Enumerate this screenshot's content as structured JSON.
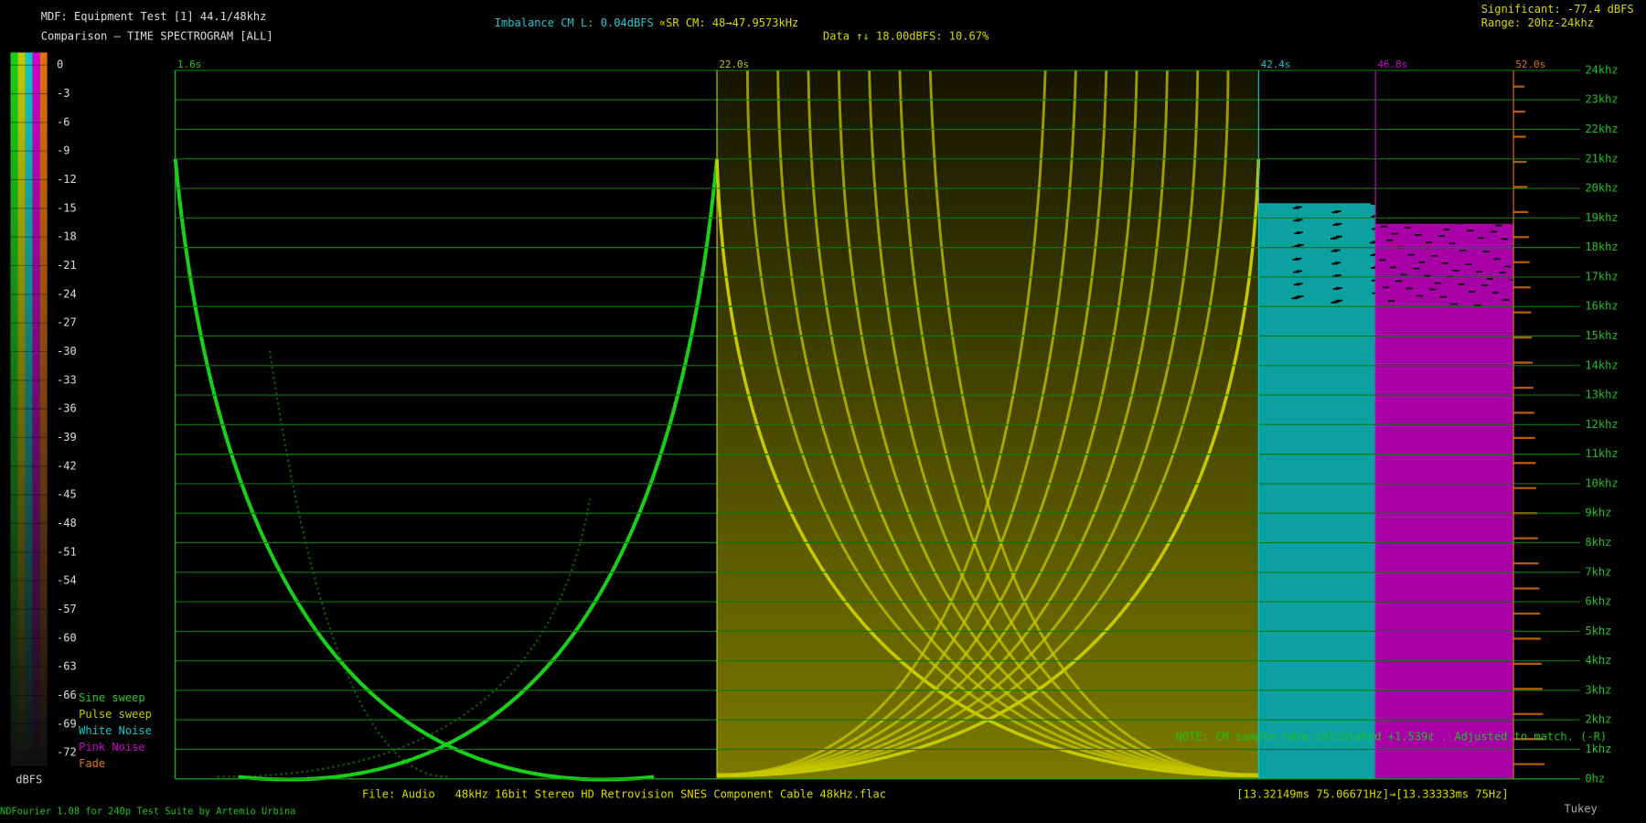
{
  "header": {
    "title": "MDF: Equipment Test [1] 44.1/48khz",
    "subtitle": "Comparison — TIME SPECTROGRAM [ALL]",
    "imbalance": "Imbalance CM L: 0.04dBFS",
    "sample_rate": "∝SR CM: 48→47.9573kHz",
    "data": "Data ↑↓ 18.00dBFS: 10.67%",
    "significant": "Significant: -77.4 dBFS",
    "range": "Range: 20hz-24khz"
  },
  "chart_data": {
    "type": "spectrogram",
    "series": [
      {
        "name": "Sine sweep",
        "color": "#18d018"
      },
      {
        "name": "Pulse sweep",
        "color": "#c8c800"
      },
      {
        "name": "White Noise",
        "color": "#10c8c8"
      },
      {
        "name": "Pink Noise",
        "color": "#d000d0"
      },
      {
        "name": "Fade",
        "color": "#e07010"
      }
    ],
    "xlim": [
      1.6,
      54.5
    ],
    "xticks": [
      {
        "value": 1.6,
        "label": "1.6s"
      },
      {
        "value": 22.0,
        "label": "22.0s"
      },
      {
        "value": 42.4,
        "label": "42.4s"
      },
      {
        "value": 46.8,
        "label": "46.8s"
      },
      {
        "value": 52.0,
        "label": "52.0s"
      }
    ],
    "ylim": [
      0,
      24000
    ],
    "yticks": [
      {
        "value": 0,
        "label": "0hz"
      },
      {
        "value": 1000,
        "label": "1khz"
      },
      {
        "value": 2000,
        "label": "2khz"
      },
      {
        "value": 3000,
        "label": "3khz"
      },
      {
        "value": 4000,
        "label": "4khz"
      },
      {
        "value": 5000,
        "label": "5khz"
      },
      {
        "value": 6000,
        "label": "6khz"
      },
      {
        "value": 7000,
        "label": "7khz"
      },
      {
        "value": 8000,
        "label": "8khz"
      },
      {
        "value": 9000,
        "label": "9khz"
      },
      {
        "value": 10000,
        "label": "10khz"
      },
      {
        "value": 11000,
        "label": "11khz"
      },
      {
        "value": 12000,
        "label": "12khz"
      },
      {
        "value": 13000,
        "label": "13khz"
      },
      {
        "value": 14000,
        "label": "14khz"
      },
      {
        "value": 15000,
        "label": "15khz"
      },
      {
        "value": 16000,
        "label": "16khz"
      },
      {
        "value": 17000,
        "label": "17khz"
      },
      {
        "value": 18000,
        "label": "18khz"
      },
      {
        "value": 19000,
        "label": "19khz"
      },
      {
        "value": 20000,
        "label": "20khz"
      },
      {
        "value": 21000,
        "label": "21khz"
      },
      {
        "value": 22000,
        "label": "22khz"
      },
      {
        "value": 23000,
        "label": "23khz"
      },
      {
        "value": 24000,
        "label": "24khz"
      }
    ],
    "grid": true,
    "color_scale": {
      "label": "dBFS",
      "lim": [
        0,
        -72
      ],
      "ticks": [
        0,
        -3,
        -6,
        -9,
        -12,
        -15,
        -18,
        -21,
        -24,
        -27,
        -30,
        -33,
        -36,
        -39,
        -42,
        -45,
        -48,
        -51,
        -54,
        -57,
        -60,
        -63,
        -66,
        -69,
        -72
      ]
    },
    "note": "NOTE: CM sample rate calculated +1.539¢ . Adjusted to match. (-R)",
    "file": "File: Audio   48kHz 16bit Stereo HD Retrovision SNES Component Cable 48kHz.flac",
    "timing": "[13.32149ms 75.06671Hz]→[13.33333ms 75Hz]"
  },
  "footer": {
    "credit": "NDFourier 1.08 for 240p Test Suite by Artemio Urbina",
    "window": "Tukey"
  }
}
